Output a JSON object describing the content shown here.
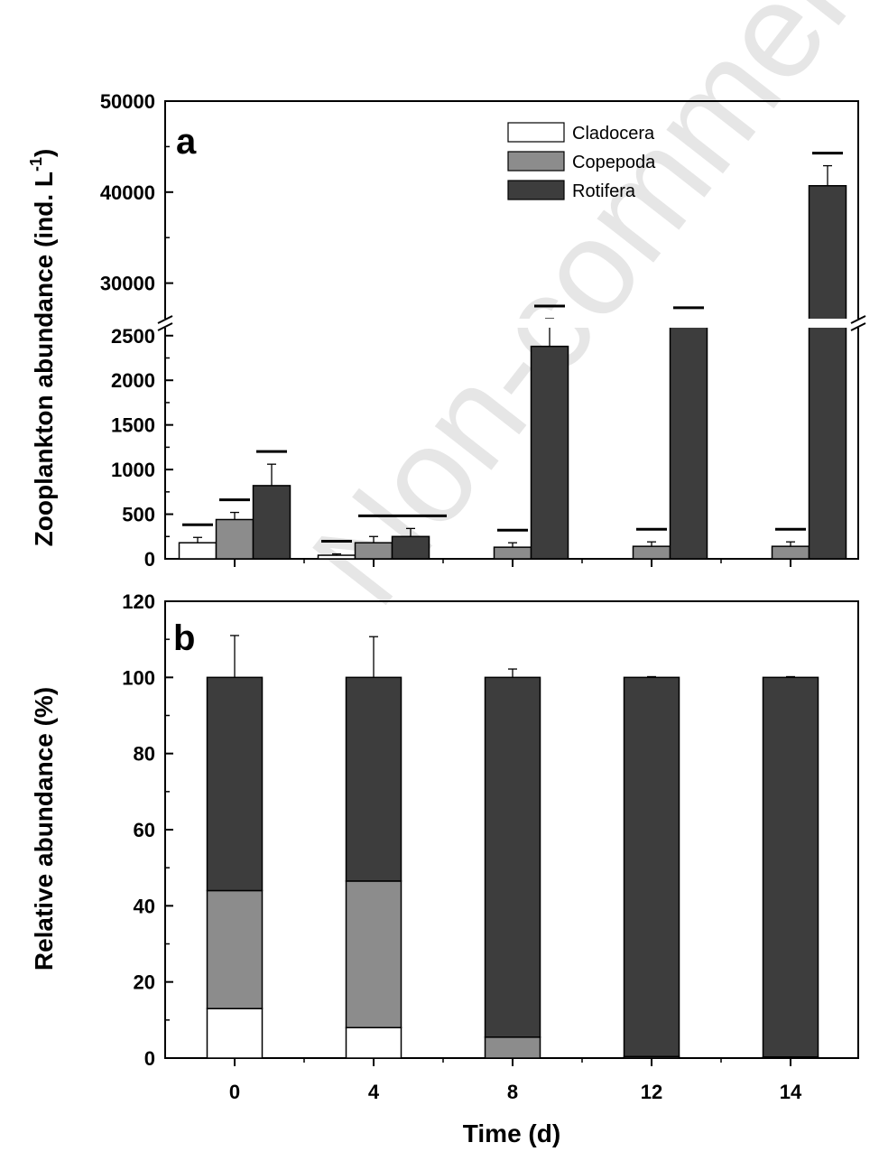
{
  "colors": {
    "Cladocera": "#ffffff",
    "Copepoda": "#8c8c8c",
    "Rotifera": "#3d3d3d"
  },
  "watermark": "Non-commercial",
  "chart_data": [
    {
      "type": "bar",
      "panel_label": "a",
      "ylabel": "Zooplankton abundance (ind. L",
      "ylabel_sup": "-1",
      "ylabel_end": ")",
      "categories": [
        "0",
        "4",
        "8",
        "12",
        "14"
      ],
      "series": [
        {
          "name": "Cladocera",
          "values": [
            180,
            40,
            0,
            0,
            0
          ],
          "errors": [
            60,
            15,
            0,
            0,
            0
          ]
        },
        {
          "name": "Copepoda",
          "values": [
            440,
            180,
            130,
            140,
            140
          ],
          "errors": [
            80,
            70,
            50,
            50,
            50
          ]
        },
        {
          "name": "Rotifera",
          "values": [
            820,
            250,
            2380,
            25300,
            40700
          ],
          "errors": [
            240,
            90,
            310,
            600,
            2200
          ]
        }
      ],
      "significance_bars": [
        {
          "category": "0",
          "series": "Cladocera"
        },
        {
          "category": "0",
          "series": "Copepoda"
        },
        {
          "category": "0",
          "series": "Rotifera"
        },
        {
          "category": "4",
          "series": "Cladocera"
        },
        {
          "category": "4",
          "series": "Copepoda+Rotifera"
        },
        {
          "category": "8",
          "series": "Copepoda"
        },
        {
          "category": "8",
          "series": "Rotifera"
        },
        {
          "category": "12",
          "series": "Copepoda"
        },
        {
          "category": "12",
          "series": "Rotifera"
        },
        {
          "category": "14",
          "series": "Copepoda"
        },
        {
          "category": "14",
          "series": "Rotifera"
        }
      ],
      "y_axis": {
        "broken": true,
        "lower_range": [
          0,
          2700
        ],
        "upper_range": [
          25000,
          50000
        ],
        "lower_ticks": [
          "0",
          "500",
          "1000",
          "1500",
          "2000",
          "2500"
        ],
        "upper_ticks": [
          "30000",
          "40000",
          "50000"
        ]
      },
      "legend": {
        "position": "top-right",
        "entries": [
          "Cladocera",
          "Copepoda",
          "Rotifera"
        ]
      }
    },
    {
      "type": "bar",
      "stacked": true,
      "panel_label": "b",
      "ylabel": "Relative abundance (%)",
      "xlabel": "Time (d)",
      "categories": [
        "0",
        "4",
        "8",
        "12",
        "14"
      ],
      "series": [
        {
          "name": "Cladocera",
          "values": [
            13,
            8,
            0,
            0,
            0
          ],
          "errors": [
            4.5,
            2.8,
            0,
            0,
            0
          ]
        },
        {
          "name": "Copepoda",
          "values": [
            31,
            38.5,
            5.5,
            0.4,
            0.3
          ],
          "errors": [
            8.5,
            8.3,
            2.2,
            0,
            0
          ]
        },
        {
          "name": "Rotifera",
          "values": [
            56,
            53.5,
            94.5,
            99.6,
            99.7
          ],
          "errors": [
            11,
            10.7,
            2.2,
            0.2,
            0.2
          ]
        }
      ],
      "ylim": [
        0,
        120
      ],
      "y_ticks": [
        "0",
        "20",
        "40",
        "60",
        "80",
        "100",
        "120"
      ]
    }
  ]
}
